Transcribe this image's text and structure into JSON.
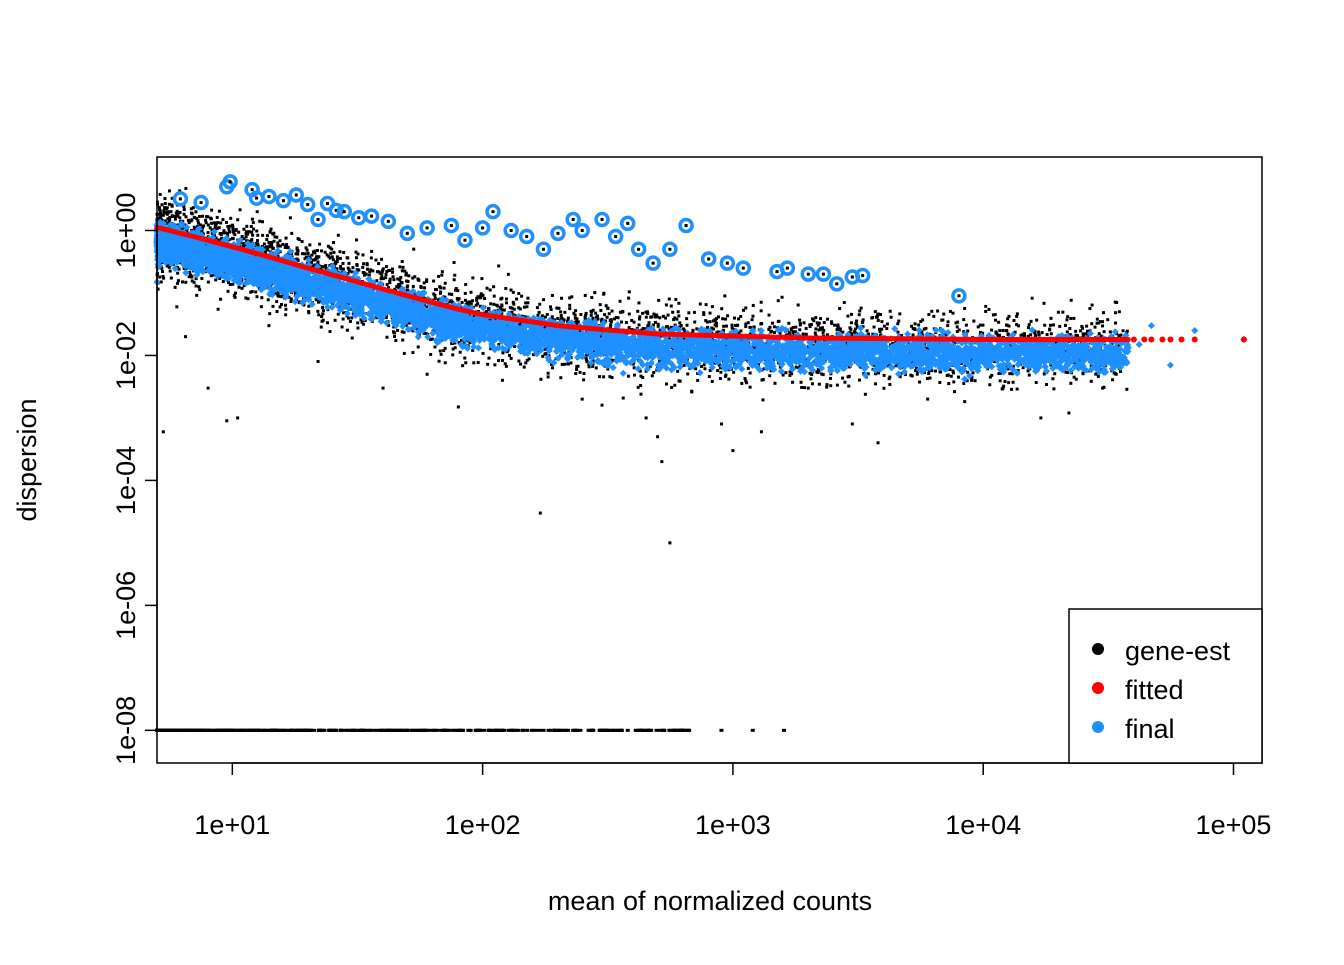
{
  "chart_data": {
    "type": "scatter",
    "title": "",
    "xlabel": "mean of normalized counts",
    "ylabel": "dispersion",
    "x_scale": "log10",
    "y_scale": "log10",
    "xlim": [
      5.0,
      130000
    ],
    "ylim": [
      3e-09,
      15
    ],
    "x_ticks": [
      {
        "value": 10,
        "label": "1e+01"
      },
      {
        "value": 100,
        "label": "1e+02"
      },
      {
        "value": 1000,
        "label": "1e+03"
      },
      {
        "value": 10000,
        "label": "1e+04"
      },
      {
        "value": 100000,
        "label": "1e+05"
      }
    ],
    "y_ticks": [
      {
        "value": 1e-08,
        "label": "1e-08"
      },
      {
        "value": 1e-06,
        "label": "1e-06"
      },
      {
        "value": 0.0001,
        "label": "1e-04"
      },
      {
        "value": 0.01,
        "label": "1e-02"
      },
      {
        "value": 1,
        "label": "1e+00"
      }
    ],
    "legend": {
      "placement": "bottom-right",
      "entries": [
        {
          "label": "gene-est",
          "color": "#000000"
        },
        {
          "label": "fitted",
          "color": "#ff0000"
        },
        {
          "label": "final",
          "color": "#1e90ff"
        }
      ]
    },
    "series": [
      {
        "name": "gene-est",
        "color": "#000000",
        "points": [
          [
            5.0,
            1.5
          ],
          [
            5.2,
            0.15
          ],
          [
            5.3,
            0.0006
          ],
          [
            5.5,
            0.3
          ],
          [
            6,
            0.06
          ],
          [
            6.5,
            0.02
          ],
          [
            8,
            0.003
          ],
          [
            9.5,
            0.0009
          ],
          [
            10.5,
            0.001
          ],
          [
            14,
            0.03
          ],
          [
            18,
            0.25
          ],
          [
            22,
            0.008
          ],
          [
            30,
            0.04
          ],
          [
            40,
            0.003
          ],
          [
            60,
            0.005
          ],
          [
            80,
            0.0015
          ],
          [
            120,
            0.004
          ],
          [
            170,
            3e-05
          ],
          [
            250,
            0.002
          ],
          [
            300,
            0.0016
          ],
          [
            450,
            0.001
          ],
          [
            500,
            0.0005
          ],
          [
            520,
            0.0002
          ],
          [
            560,
            1e-05
          ],
          [
            900,
            0.0008
          ],
          [
            1000,
            0.0003
          ],
          [
            1300,
            0.0006
          ],
          [
            2000,
            0.003
          ],
          [
            3000,
            0.0008
          ],
          [
            3800,
            0.0004
          ],
          [
            6000,
            0.002
          ],
          [
            9000,
            0.004
          ],
          [
            12000,
            0.003
          ],
          [
            17000,
            0.001
          ],
          [
            22000,
            0.0012
          ],
          [
            30000,
            0.003
          ],
          [
            34000,
            0.005
          ],
          [
            35000,
            0.05
          ]
        ],
        "floor_points": [
          [
            5,
            1e-08
          ],
          [
            7,
            1e-08
          ],
          [
            10,
            1e-08
          ],
          [
            15,
            1e-08
          ],
          [
            20,
            1e-08
          ],
          [
            30,
            1e-08
          ],
          [
            40,
            1e-08
          ],
          [
            60,
            1e-08
          ],
          [
            80,
            1e-08
          ],
          [
            120,
            1e-08
          ],
          [
            200,
            1e-08
          ],
          [
            300,
            1e-08
          ],
          [
            450,
            1e-08
          ],
          [
            900,
            1e-08
          ],
          [
            1200,
            1e-08
          ],
          [
            1600,
            1e-08
          ]
        ]
      },
      {
        "name": "fitted",
        "color": "#ff0000",
        "curve": [
          [
            5,
            1.12
          ],
          [
            7,
            0.8
          ],
          [
            10,
            0.55
          ],
          [
            15,
            0.35
          ],
          [
            20,
            0.25
          ],
          [
            30,
            0.16
          ],
          [
            50,
            0.09
          ],
          [
            80,
            0.055
          ],
          [
            100,
            0.045
          ],
          [
            200,
            0.03
          ],
          [
            300,
            0.026
          ],
          [
            500,
            0.022
          ],
          [
            1000,
            0.0205
          ],
          [
            2000,
            0.019
          ],
          [
            5000,
            0.0185
          ],
          [
            10000,
            0.018
          ],
          [
            30000,
            0.018
          ],
          [
            60000,
            0.018
          ],
          [
            110000,
            0.018
          ]
        ]
      },
      {
        "name": "final",
        "color": "#1e90ff",
        "points": [
          [
            5,
            0.15
          ],
          [
            6,
            0.35
          ],
          [
            7,
            0.25
          ],
          [
            10,
            0.2
          ],
          [
            15,
            0.12
          ],
          [
            20,
            0.1
          ],
          [
            30,
            0.07
          ],
          [
            50,
            0.05
          ],
          [
            80,
            0.04
          ],
          [
            100,
            0.035
          ],
          [
            200,
            0.025
          ],
          [
            400,
            0.02
          ],
          [
            800,
            0.017
          ],
          [
            1500,
            0.016
          ],
          [
            3000,
            0.015
          ],
          [
            5000,
            0.014
          ],
          [
            8000,
            0.013
          ],
          [
            12000,
            0.011
          ],
          [
            18000,
            0.009
          ],
          [
            25000,
            0.012
          ],
          [
            30000,
            0.016
          ],
          [
            42000,
            0.015
          ],
          [
            47000,
            0.03
          ],
          [
            56000,
            0.007
          ],
          [
            70000,
            0.025
          ],
          [
            110000,
            0.018
          ]
        ],
        "outliers": [
          [
            6.2,
            3.2
          ],
          [
            7.5,
            2.8
          ],
          [
            9.5,
            5.0
          ],
          [
            9.8,
            6.0
          ],
          [
            12,
            4.5
          ],
          [
            12.5,
            3.3
          ],
          [
            14,
            3.5
          ],
          [
            16,
            3.0
          ],
          [
            18,
            3.7
          ],
          [
            20,
            2.6
          ],
          [
            22,
            1.5
          ],
          [
            24,
            2.7
          ],
          [
            26,
            2.1
          ],
          [
            28,
            2.0
          ],
          [
            32,
            1.6
          ],
          [
            36,
            1.7
          ],
          [
            42,
            1.4
          ],
          [
            50,
            0.9
          ],
          [
            60,
            1.1
          ],
          [
            75,
            1.2
          ],
          [
            85,
            0.7
          ],
          [
            100,
            1.1
          ],
          [
            110,
            2.0
          ],
          [
            130,
            1.0
          ],
          [
            150,
            0.8
          ],
          [
            175,
            0.5
          ],
          [
            200,
            0.9
          ],
          [
            230,
            1.5
          ],
          [
            250,
            1.0
          ],
          [
            300,
            1.5
          ],
          [
            340,
            0.8
          ],
          [
            380,
            1.3
          ],
          [
            420,
            0.5
          ],
          [
            480,
            0.3
          ],
          [
            560,
            0.5
          ],
          [
            650,
            1.2
          ],
          [
            800,
            0.35
          ],
          [
            950,
            0.3
          ],
          [
            1100,
            0.25
          ],
          [
            1500,
            0.22
          ],
          [
            1650,
            0.25
          ],
          [
            2000,
            0.2
          ],
          [
            2300,
            0.2
          ],
          [
            2600,
            0.14
          ],
          [
            3000,
            0.18
          ],
          [
            3300,
            0.19
          ],
          [
            8000,
            0.09
          ]
        ]
      }
    ]
  }
}
